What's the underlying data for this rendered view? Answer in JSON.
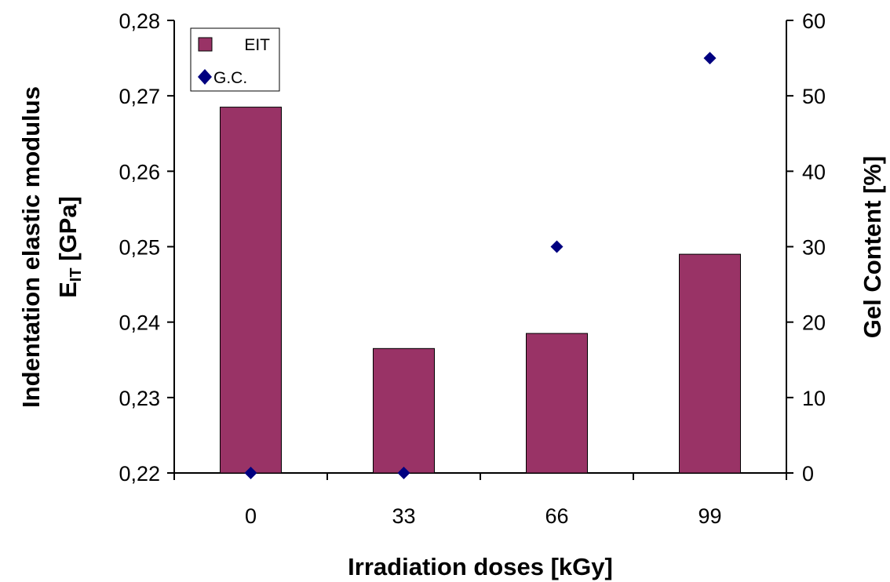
{
  "chart_data": {
    "type": "bar",
    "categories": [
      "0",
      "33",
      "66",
      "99"
    ],
    "xlabel": "Irradiation doses [kGy]",
    "ylabel_line1": "Indentation elastic modulus",
    "ylabel_line2_main": "E",
    "ylabel_line2_sub": "IT",
    "ylabel_line2_unit": " [GPa]",
    "y2label": "Gel Content [%]",
    "ylim": [
      0.22,
      0.28
    ],
    "yticks": [
      "0,22",
      "0,23",
      "0,24",
      "0,25",
      "0,26",
      "0,27",
      "0,28"
    ],
    "y2lim": [
      0,
      60
    ],
    "y2ticks": [
      "0",
      "10",
      "20",
      "30",
      "40",
      "50",
      "60"
    ],
    "grid": false,
    "legend_position": "top-left",
    "series": [
      {
        "name": "EIT",
        "type": "bar",
        "axis": "left",
        "values": [
          0.2685,
          0.2365,
          0.2385,
          0.249
        ],
        "color": "#993366"
      },
      {
        "name": "G.C.",
        "type": "scatter",
        "axis": "right",
        "marker": "diamond",
        "values": [
          0,
          0,
          30,
          55
        ],
        "color": "#000080"
      }
    ]
  }
}
